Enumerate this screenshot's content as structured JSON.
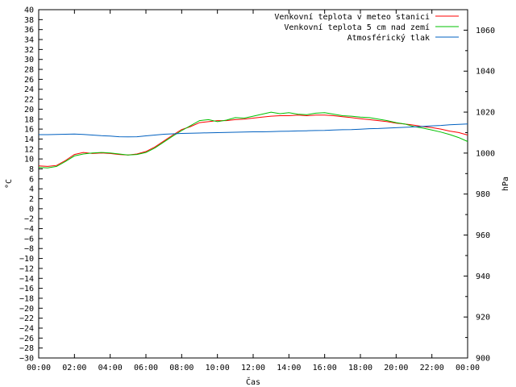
{
  "chart_data": {
    "type": "line",
    "title": "",
    "xlabel": "Čas",
    "ylabel_left": "°C",
    "ylabel_right": "hPa",
    "xlim": [
      0,
      24
    ],
    "ylim_left": [
      -30,
      40
    ],
    "ylim_right": [
      900,
      1070
    ],
    "x_tick_labels": [
      "00:00",
      "02:00",
      "04:00",
      "06:00",
      "08:00",
      "10:00",
      "12:00",
      "14:00",
      "16:00",
      "18:00",
      "20:00",
      "22:00",
      "00:00"
    ],
    "y_left_tick_labels": [
      "40",
      "38",
      "36",
      "34",
      "32",
      "30",
      "28",
      "26",
      "24",
      "22",
      "20",
      "18",
      "16",
      "14",
      "12",
      "10",
      "8",
      "6",
      "4",
      "2",
      "0",
      "−2",
      "−4",
      "−6",
      "−8",
      "−10",
      "−12",
      "−14",
      "−16",
      "−18",
      "−20",
      "−22",
      "−24",
      "−26",
      "−28",
      "−30"
    ],
    "y_right_tick_labels": [
      "1060",
      "1040",
      "1020",
      "1000",
      "980",
      "960",
      "940",
      "920",
      "900"
    ],
    "grid": false,
    "legend_position": "top-right",
    "x": [
      0,
      0.5,
      1,
      1.5,
      2,
      2.5,
      3,
      3.5,
      4,
      4.5,
      5,
      5.5,
      6,
      6.5,
      7,
      7.5,
      8,
      8.5,
      9,
      9.5,
      10,
      10.5,
      11,
      11.5,
      12,
      12.5,
      13,
      13.5,
      14,
      14.5,
      15,
      15.5,
      16,
      16.5,
      17,
      17.5,
      18,
      18.5,
      19,
      19.5,
      20,
      20.5,
      21,
      21.5,
      22,
      22.5,
      23,
      23.5,
      24
    ],
    "series": [
      {
        "name": "Venkovní teplota v meteo stanici",
        "color": "#ff0000",
        "axis": "left",
        "values": [
          8.6,
          8.5,
          8.7,
          9.7,
          10.9,
          11.3,
          11.1,
          11.2,
          11.1,
          10.9,
          10.8,
          11.0,
          11.5,
          12.4,
          13.6,
          14.8,
          15.9,
          16.5,
          17.3,
          17.5,
          17.7,
          17.7,
          17.9,
          18.0,
          18.2,
          18.4,
          18.6,
          18.7,
          18.7,
          18.8,
          18.7,
          18.8,
          18.8,
          18.7,
          18.5,
          18.3,
          18.1,
          17.9,
          17.7,
          17.5,
          17.2,
          17.0,
          16.8,
          16.5,
          16.3,
          16.0,
          15.6,
          15.3,
          14.8
        ]
      },
      {
        "name": "Venkovní teplota 5 cm nad zemí",
        "color": "#00c000",
        "axis": "left",
        "values": [
          8.3,
          8.2,
          8.5,
          9.5,
          10.6,
          11.0,
          11.2,
          11.3,
          11.2,
          11.0,
          10.8,
          10.9,
          11.3,
          12.2,
          13.4,
          14.6,
          15.7,
          16.7,
          17.7,
          17.9,
          17.5,
          17.8,
          18.3,
          18.2,
          18.6,
          19.0,
          19.4,
          19.1,
          19.3,
          19.0,
          18.9,
          19.2,
          19.3,
          19.0,
          18.7,
          18.6,
          18.4,
          18.3,
          18.0,
          17.7,
          17.3,
          17.0,
          16.5,
          16.2,
          15.8,
          15.4,
          14.9,
          14.3,
          13.5
        ]
      },
      {
        "name": "Atmosférický tlak",
        "color": "#0060c0",
        "axis": "right",
        "values": [
          1009.0,
          1009.0,
          1009.1,
          1009.2,
          1009.3,
          1009.1,
          1008.8,
          1008.5,
          1008.3,
          1008.0,
          1007.9,
          1008.0,
          1008.4,
          1008.8,
          1009.2,
          1009.4,
          1009.6,
          1009.7,
          1009.8,
          1009.9,
          1010.0,
          1010.1,
          1010.2,
          1010.3,
          1010.4,
          1010.4,
          1010.5,
          1010.6,
          1010.7,
          1010.8,
          1010.9,
          1011.0,
          1011.1,
          1011.3,
          1011.4,
          1011.5,
          1011.7,
          1011.9,
          1012.0,
          1012.2,
          1012.4,
          1012.6,
          1012.8,
          1013.0,
          1013.3,
          1013.5,
          1013.8,
          1014.0,
          1014.2
        ]
      }
    ]
  }
}
